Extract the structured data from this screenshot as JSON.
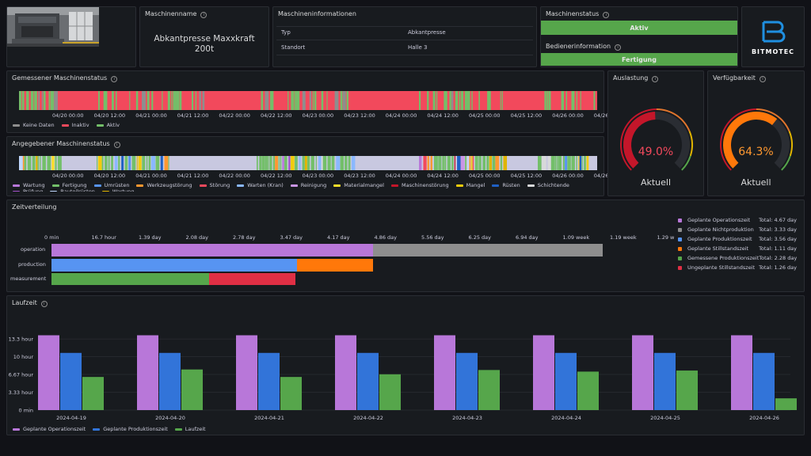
{
  "machine_name": {
    "title": "Maschinenname",
    "value": "Abkantpresse Maxxkraft 200t"
  },
  "machine_info": {
    "title": "Maschineninformationen",
    "rows": [
      {
        "label": "Typ",
        "value": "Abkantpresse"
      },
      {
        "label": "Standort",
        "value": "Halle 3"
      }
    ]
  },
  "machine_status": {
    "title": "Maschinenstatus",
    "value": "Aktiv"
  },
  "operator_info": {
    "title": "Bedienerinformation",
    "value": "Fertigung"
  },
  "logo": {
    "text": "BITMOTEC"
  },
  "measured_status": {
    "title": "Gemessener Maschinenstatus",
    "legend": [
      {
        "label": "Keine Daten",
        "color": "#8e8e8e"
      },
      {
        "label": "Inaktiv",
        "color": "#f2495c"
      },
      {
        "label": "Aktiv",
        "color": "#73bf69"
      }
    ]
  },
  "declared_status": {
    "title": "Angegebener Maschinenstatus",
    "legend": [
      {
        "label": "Wartung",
        "color": "#b877d9"
      },
      {
        "label": "Fertigung",
        "color": "#73bf69"
      },
      {
        "label": "Umrüsten",
        "color": "#5794f2"
      },
      {
        "label": "Werkzeugstörung",
        "color": "#ff9830"
      },
      {
        "label": "Störung",
        "color": "#f2495c"
      },
      {
        "label": "Warten (Kran)",
        "color": "#8ab8ff"
      },
      {
        "label": "Reinigung",
        "color": "#ca95e5"
      },
      {
        "label": "Materialmangel",
        "color": "#fade2a"
      },
      {
        "label": "Maschinenstörung",
        "color": "#c4162a"
      },
      {
        "label": "Mangel",
        "color": "#f2cc0c"
      },
      {
        "label": "Rüsten",
        "color": "#1f60c4"
      },
      {
        "label": "Schichtende",
        "color": "#d8d9da"
      },
      {
        "label": "Prüfung",
        "color": "#a352cc"
      },
      {
        "label": "Bauteilrüsten",
        "color": "#c0d8ff"
      },
      {
        "label": "Wartung",
        "color": "#e0b400"
      }
    ]
  },
  "time_ticks": [
    "04/20 00:00",
    "04/20 12:00",
    "04/21 00:00",
    "04/21 12:00",
    "04/22 00:00",
    "04/22 12:00",
    "04/23 00:00",
    "04/23 12:00",
    "04/24 00:00",
    "04/24 12:00",
    "04/25 00:00",
    "04/25 12:00",
    "04/26 00:00",
    "04/26 1"
  ],
  "utilization": {
    "title": "Auslastung",
    "value": "49.0%",
    "fraction": 0.49,
    "label": "Aktuell",
    "color": "#c4162a",
    "value_color": "#f2495c"
  },
  "availability": {
    "title": "Verfügbarkeit",
    "value": "64.3%",
    "fraction": 0.643,
    "label": "Aktuell",
    "color": "#ff780a",
    "value_color": "#ff9830"
  },
  "time_distribution": {
    "title": "Zeitverteilung",
    "axis_ticks": [
      "0 min",
      "16.7 hour",
      "1.39 day",
      "2.08 day",
      "2.78 day",
      "3.47 day",
      "4.17 day",
      "4.86 day",
      "5.56 day",
      "6.25 day",
      "6.94 day",
      "1.09 week",
      "1.19 week",
      "1.29 w"
    ],
    "rows": [
      "operation",
      "production",
      "measurement"
    ],
    "legend": [
      {
        "label": "Geplante Operationszeit",
        "total": "Total: 4.67 day",
        "color": "#b877d9"
      },
      {
        "label": "Geplante Nichtproduktion",
        "total": "Total: 3.33 day",
        "color": "#8e8e8e"
      },
      {
        "label": "Geplante Produktionszeit",
        "total": "Total: 3.56 day",
        "color": "#5794f2"
      },
      {
        "label": "Geplante Stillstandszeit",
        "total": "Total: 1.11 day",
        "color": "#ff780a"
      },
      {
        "label": "Gemessene Produktionszeit",
        "total": "Total: 2.28 day",
        "color": "#56a64b"
      },
      {
        "label": "Ungeplante Stillstandszeit",
        "total": "Total: 1.26 day",
        "color": "#e02f44"
      }
    ]
  },
  "chart_data": {
    "type": "bar",
    "title": "Laufzeit",
    "categories": [
      "2024-04-19",
      "2024-04-20",
      "2024-04-21",
      "2024-04-22",
      "2024-04-23",
      "2024-04-24",
      "2024-04-25",
      "2024-04-26"
    ],
    "y_ticks": [
      "0 min",
      "3.33 hour",
      "6.67 hour",
      "10 hour",
      "13.3 hour"
    ],
    "ylim": [
      0,
      16
    ],
    "series": [
      {
        "name": "Geplante Operationszeit",
        "color": "#b877d9",
        "values": [
          14,
          14,
          14,
          14,
          14,
          14,
          14,
          14
        ]
      },
      {
        "name": "Geplante Produktionszeit",
        "color": "#3274d9",
        "values": [
          10.7,
          10.7,
          10.7,
          10.7,
          10.7,
          10.7,
          10.7,
          10.7
        ]
      },
      {
        "name": "Laufzeit",
        "color": "#56a64b",
        "values": [
          6.2,
          7.6,
          6.2,
          6.7,
          7.5,
          7.2,
          7.4,
          2.2
        ]
      }
    ]
  }
}
